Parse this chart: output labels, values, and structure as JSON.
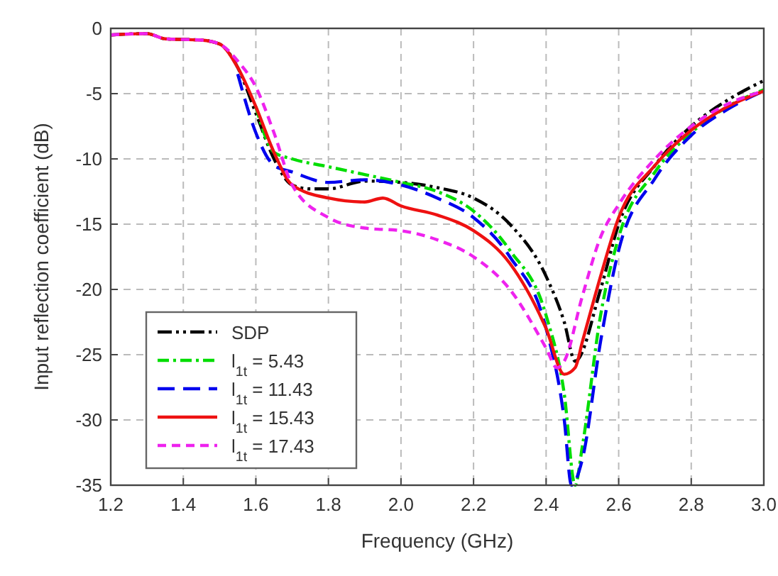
{
  "chart_data": {
    "type": "line",
    "xlabel": "Frequency (GHz)",
    "ylabel": "Input reflection coefficient (dB)",
    "xlim": [
      1.2,
      3.0
    ],
    "ylim": [
      -35,
      0
    ],
    "xticks": [
      1.2,
      {
        "value": 1.4,
        "label": "1.4"
      },
      {
        "value": 1.6,
        "label": "1.6"
      },
      {
        "value": 1.8,
        "label": "1.8"
      },
      {
        "value": 2.0,
        "label": "2.0"
      },
      {
        "value": 2.2,
        "label": "2.2"
      },
      {
        "value": 2.4,
        "label": "2.4"
      },
      {
        "value": 2.6,
        "label": "2.6"
      },
      {
        "value": 2.8,
        "label": "2.8"
      },
      {
        "value": 3.0,
        "label": "3.0"
      }
    ],
    "yticks": [
      0,
      -5,
      -10,
      -15,
      -20,
      -25,
      -30,
      -35
    ],
    "grid": true,
    "legend": "bottom left",
    "series": [
      {
        "name": "SDP",
        "color": "#000000",
        "line_style": "dashed",
        "x": [
          1.2,
          1.3,
          1.35,
          1.45,
          1.5,
          1.55,
          1.6,
          1.65,
          1.7,
          1.75,
          1.8,
          1.9,
          2.0,
          2.1,
          2.2,
          2.3,
          2.4,
          2.45,
          2.48,
          2.55,
          2.6,
          2.7,
          2.8,
          2.9,
          3.0
        ],
        "values": [
          -0.5,
          -0.4,
          -0.8,
          -0.9,
          -1.2,
          -3,
          -6.5,
          -10,
          -12,
          -12.3,
          -12.3,
          -11.7,
          -11.8,
          -12.2,
          -13,
          -15,
          -19,
          -22.5,
          -25.5,
          -20,
          -15,
          -10.5,
          -7.5,
          -5.5,
          -4
        ]
      },
      {
        "name": "l$_{1t}$ = 5.43",
        "color": "#00dd00",
        "line_style": "dashed",
        "x": [
          1.6,
          1.65,
          1.7,
          1.8,
          1.9,
          2.0,
          2.1,
          2.2,
          2.3,
          2.4,
          2.45,
          2.48,
          2.5,
          2.55,
          2.6,
          2.7,
          2.8,
          2.9,
          3.0
        ],
        "values": [
          -6,
          -9.5,
          -10,
          -10.6,
          -11.2,
          -11.8,
          -12.5,
          -14,
          -17,
          -22,
          -28,
          -35,
          -32,
          -22,
          -16,
          -11,
          -8,
          -6,
          -4.7
        ]
      },
      {
        "name": "l$_{1t}$ = 11.43",
        "color": "#0000ee",
        "line_style": "dashed",
        "x": [
          1.55,
          1.6,
          1.65,
          1.7,
          1.8,
          1.9,
          2.0,
          2.1,
          2.2,
          2.3,
          2.4,
          2.45,
          2.47,
          2.5,
          2.55,
          2.6,
          2.7,
          2.8,
          2.9,
          3.0
        ],
        "values": [
          -3.5,
          -8,
          -10.5,
          -11,
          -11.8,
          -11.6,
          -12,
          -13,
          -14.5,
          -17.5,
          -23,
          -30,
          -35,
          -33,
          -24,
          -17,
          -11.5,
          -8.2,
          -6.2,
          -4.8
        ]
      },
      {
        "name": "l$_{1t}$ = 15.43",
        "color": "#ee1111",
        "line_style": "solid",
        "x": [
          1.2,
          1.3,
          1.35,
          1.45,
          1.5,
          1.55,
          1.6,
          1.65,
          1.7,
          1.8,
          1.9,
          1.95,
          2.0,
          2.1,
          2.2,
          2.3,
          2.4,
          2.45,
          2.48,
          2.5,
          2.55,
          2.6,
          2.7,
          2.8,
          2.9,
          3.0
        ],
        "values": [
          -0.5,
          -0.4,
          -0.8,
          -0.9,
          -1.2,
          -3,
          -6,
          -9.5,
          -12,
          -13,
          -13.3,
          -13,
          -13.6,
          -14.3,
          -15.5,
          -18,
          -23,
          -26.5,
          -26,
          -24,
          -19,
          -14.5,
          -10.5,
          -7.8,
          -6,
          -4.8
        ]
      },
      {
        "name": "l$_{1t}$ = 17.43",
        "color": "#ee22ee",
        "line_style": "dashed",
        "x": [
          1.2,
          1.3,
          1.35,
          1.45,
          1.5,
          1.55,
          1.6,
          1.65,
          1.7,
          1.8,
          1.9,
          2.0,
          2.1,
          2.2,
          2.3,
          2.4,
          2.43,
          2.45,
          2.5,
          2.55,
          2.6,
          2.7,
          2.8,
          2.9,
          3.0
        ],
        "values": [
          -0.5,
          -0.4,
          -0.8,
          -0.9,
          -1.2,
          -2.5,
          -4.5,
          -8,
          -12,
          -14.5,
          -15.3,
          -15.5,
          -16.2,
          -17.5,
          -20,
          -24.5,
          -26,
          -25.5,
          -20.5,
          -16,
          -13.5,
          -10,
          -7.5,
          -5.8,
          -4.8
        ]
      }
    ]
  }
}
